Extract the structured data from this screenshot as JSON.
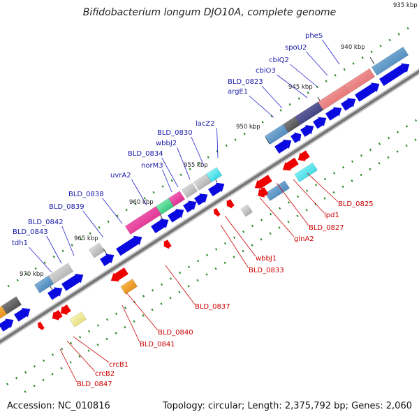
{
  "title": "Bifidobacterium longum DJO10A, complete genome",
  "footer": {
    "accession": "Accession: NC_010816",
    "summary": "Topology: circular; Length: 2,375,792 bp; Genes: 2,060"
  },
  "colors": {
    "backbone": "#777777",
    "forward_label": "#1a1aaa",
    "reverse_label": "#cc0000",
    "cds_forward": "#0a0ae0",
    "cds_reverse": "#ee0000",
    "tick": "#2a8a2a"
  },
  "kbp_ticks": [
    "935 kbp",
    "940 kbp",
    "945 kbp",
    "950 kbp",
    "955 kbp",
    "960 kbp",
    "965 kbp",
    "970 kbp"
  ],
  "forward_labels": [
    "pheS",
    "spoU2",
    "cbiQ2",
    "cbiO3",
    "BLD_0823",
    "argE1",
    "lacZ2",
    "BLD_0830",
    "wbbJ2",
    "BLD_0834",
    "norM3",
    "uvrA2",
    "BLD_0838",
    "BLD_0839",
    "BLD_0842",
    "BLD_0843",
    "tdh1"
  ],
  "reverse_labels": [
    "BLD_0825",
    "lpd1",
    "BLD_0827",
    "glnA2",
    "wbbJ1",
    "BLD_0833",
    "BLD_0837",
    "BLD_0840",
    "BLD_0841",
    "crcB1",
    "crcB2",
    "BLD_0847"
  ]
}
